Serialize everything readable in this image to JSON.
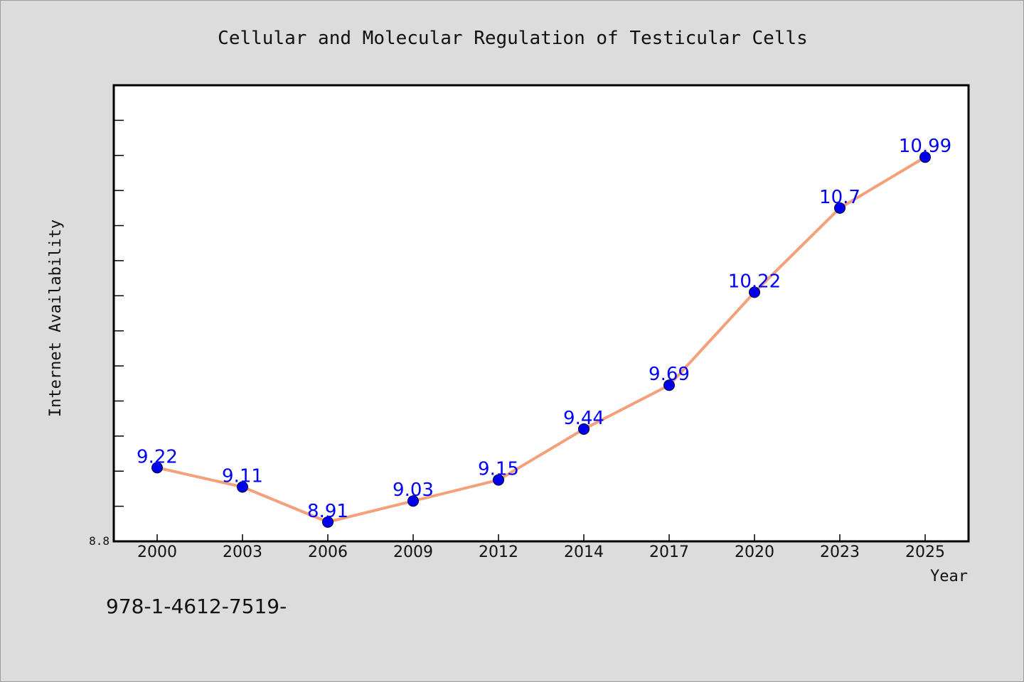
{
  "chart_data": {
    "type": "line",
    "title": "Cellular and Molecular Regulation of Testicular Cells",
    "xlabel": "Year",
    "ylabel": "Internet Availability",
    "categories": [
      "2000",
      "2003",
      "2006",
      "2009",
      "2012",
      "2014",
      "2017",
      "2020",
      "2023",
      "2025"
    ],
    "series": [
      {
        "values": [
          9.22,
          9.11,
          8.91,
          9.03,
          9.15,
          9.44,
          9.69,
          10.22,
          10.7,
          10.99
        ],
        "data_labels": [
          "9.22",
          "9.11",
          "8.91",
          "9.03",
          "9.15",
          "9.44",
          "9.69",
          "10.22",
          "10.7",
          "10.99"
        ]
      }
    ],
    "ylim": [
      8.8,
      11.4
    ],
    "y_tick_labels": [
      "8.8"
    ],
    "grid": false,
    "colors": {
      "line": "#f4a07a",
      "marker": "#0000ee",
      "label": "#0000ff"
    }
  },
  "footer_text": "978-1-4612-7519-"
}
